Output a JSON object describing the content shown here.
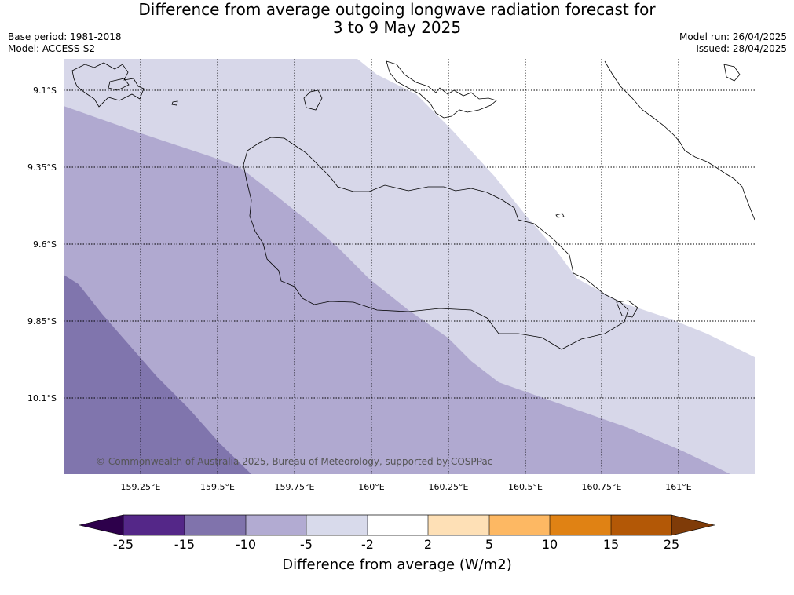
{
  "header": {
    "title_line1": "Difference from average outgoing longwave radiation forecast for",
    "title_line2": "3 to 9 May 2025",
    "base_period": "Base period: 1981-2018",
    "model": "Model: ACCESS-S2",
    "model_run": "Model run: 26/04/2025",
    "issued": "Issued: 28/04/2025"
  },
  "map": {
    "lat_labels": [
      "9.1°S",
      "9.35°S",
      "9.6°S",
      "9.85°S",
      "10.1°S"
    ],
    "lon_labels": [
      "159.25°E",
      "159.5°E",
      "159.75°E",
      "160°E",
      "160.25°E",
      "160.5°E",
      "160.75°E",
      "161°E"
    ],
    "copyright": "© Commonwealth of Australia 2025, Bureau of Meteorology, supported by COSPPac",
    "fill_colors": {
      "band_minus15_minus10": "#8075ad",
      "band_minus10_minus5": "#b0a9d0",
      "band_minus5_minus2": "#d7d7e9",
      "band_minus2_2": "#ffffff"
    }
  },
  "colorbar": {
    "title": "Difference from average (W/m2)",
    "ticks": [
      "-25",
      "-15",
      "-10",
      "-5",
      "-2",
      "2",
      "5",
      "10",
      "15",
      "25"
    ],
    "colors": [
      "#2d004b",
      "#542788",
      "#8073ac",
      "#b2abd2",
      "#d8daeb",
      "#ffffff",
      "#fee0b6",
      "#fdb863",
      "#e08214",
      "#b35806",
      "#7f3b08"
    ]
  }
}
